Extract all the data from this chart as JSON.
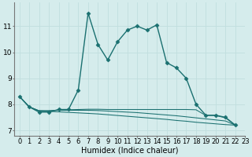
{
  "title": "",
  "xlabel": "Humidex (Indice chaleur)",
  "bg_color": "#d5ecec",
  "line_color": "#1a7070",
  "grid_color": "#c0dede",
  "xlim": [
    -0.5,
    23
  ],
  "ylim": [
    6.8,
    11.9
  ],
  "yticks": [
    7,
    8,
    9,
    10,
    11
  ],
  "xticks": [
    0,
    1,
    2,
    3,
    4,
    5,
    6,
    7,
    8,
    9,
    10,
    11,
    12,
    13,
    14,
    15,
    16,
    17,
    18,
    19,
    20,
    21,
    22,
    23
  ],
  "main_series_x": [
    0,
    1,
    2,
    3,
    4,
    5,
    6,
    7,
    8,
    9,
    10,
    11,
    12,
    13,
    14,
    15,
    16,
    17,
    18,
    19,
    20,
    21,
    22
  ],
  "main_series_y": [
    8.3,
    7.9,
    7.7,
    7.7,
    7.8,
    7.8,
    8.55,
    11.5,
    10.3,
    9.7,
    10.4,
    10.85,
    11.0,
    10.85,
    11.05,
    9.6,
    9.4,
    9.0,
    8.0,
    7.58,
    7.58,
    7.5,
    7.2
  ],
  "flat_series": [
    {
      "x": [
        0,
        1,
        2,
        3,
        4,
        5,
        6,
        7,
        8,
        9,
        10,
        11,
        12,
        13,
        14,
        15,
        16,
        17,
        18,
        19,
        20,
        21,
        22
      ],
      "y": [
        8.3,
        7.9,
        7.75,
        7.75,
        7.78,
        7.79,
        7.8,
        7.81,
        7.81,
        7.8,
        7.8,
        7.8,
        7.8,
        7.8,
        7.8,
        7.8,
        7.8,
        7.8,
        7.79,
        7.57,
        7.57,
        7.48,
        7.2
      ]
    },
    {
      "x": [
        0,
        1,
        2,
        3,
        4,
        5,
        6,
        7,
        8,
        9,
        10,
        11,
        12,
        13,
        14,
        15,
        16,
        17,
        18,
        19,
        20,
        21,
        22
      ],
      "y": [
        8.3,
        7.9,
        7.75,
        7.75,
        7.77,
        7.77,
        7.77,
        7.77,
        7.76,
        7.74,
        7.72,
        7.7,
        7.68,
        7.65,
        7.62,
        7.59,
        7.56,
        7.52,
        7.48,
        7.44,
        7.4,
        7.36,
        7.2
      ]
    },
    {
      "x": [
        0,
        1,
        2,
        3,
        4,
        5,
        6,
        7,
        8,
        9,
        10,
        11,
        12,
        13,
        14,
        15,
        16,
        17,
        18,
        19,
        20,
        21,
        22
      ],
      "y": [
        8.3,
        7.9,
        7.75,
        7.73,
        7.71,
        7.69,
        7.67,
        7.65,
        7.63,
        7.6,
        7.57,
        7.54,
        7.51,
        7.48,
        7.45,
        7.42,
        7.38,
        7.35,
        7.31,
        7.28,
        7.25,
        7.22,
        7.2
      ]
    }
  ],
  "marker": "D",
  "marker_size": 2.5,
  "line_width": 1.0,
  "font_size": 6.5
}
